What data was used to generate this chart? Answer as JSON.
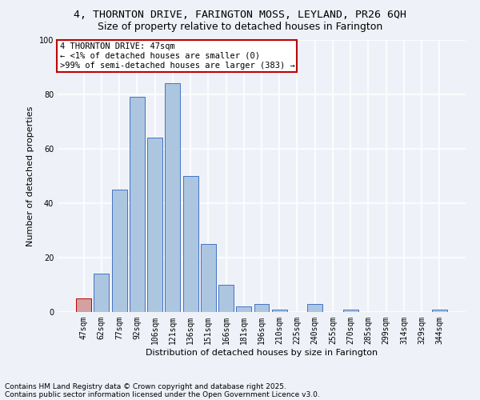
{
  "title1": "4, THORNTON DRIVE, FARINGTON MOSS, LEYLAND, PR26 6QH",
  "title2": "Size of property relative to detached houses in Farington",
  "xlabel": "Distribution of detached houses by size in Farington",
  "ylabel": "Number of detached properties",
  "footnote1": "Contains HM Land Registry data © Crown copyright and database right 2025.",
  "footnote2": "Contains public sector information licensed under the Open Government Licence v3.0.",
  "annotation_line1": "4 THORNTON DRIVE: 47sqm",
  "annotation_line2": "← <1% of detached houses are smaller (0)",
  "annotation_line3": ">99% of semi-detached houses are larger (383) →",
  "categories": [
    "47sqm",
    "62sqm",
    "77sqm",
    "92sqm",
    "106sqm",
    "121sqm",
    "136sqm",
    "151sqm",
    "166sqm",
    "181sqm",
    "196sqm",
    "210sqm",
    "225sqm",
    "240sqm",
    "255sqm",
    "270sqm",
    "285sqm",
    "299sqm",
    "314sqm",
    "329sqm",
    "344sqm"
  ],
  "values": [
    5,
    14,
    45,
    79,
    64,
    84,
    50,
    25,
    10,
    2,
    3,
    1,
    0,
    3,
    0,
    1,
    0,
    0,
    0,
    0,
    1
  ],
  "bar_color": "#adc6e0",
  "bar_edge_color": "#4472c4",
  "highlight_bar_color": "#d4a0a0",
  "highlight_bar_edge_color": "#c00000",
  "highlight_index": 0,
  "annotation_box_edge": "#c00000",
  "ylim": [
    0,
    100
  ],
  "yticks": [
    0,
    20,
    40,
    60,
    80,
    100
  ],
  "bg_color": "#eef2f8",
  "plot_bg_color": "#eef2f8",
  "grid_color": "#ffffff",
  "title_fontsize": 9.5,
  "subtitle_fontsize": 9,
  "axis_label_fontsize": 8,
  "tick_fontsize": 7,
  "annotation_fontsize": 7.5,
  "footnote_fontsize": 6.5
}
